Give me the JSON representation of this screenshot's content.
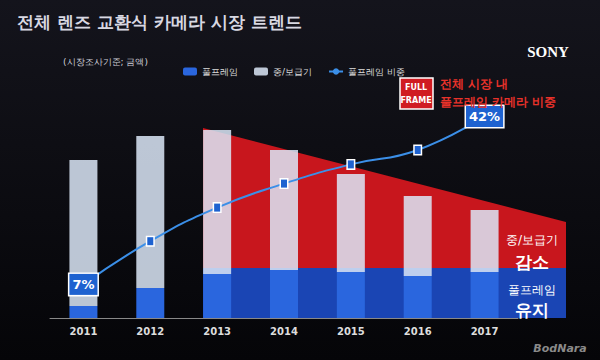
{
  "chart_data": {
    "type": "bar",
    "title": "전체 렌즈 교환식 카메라 시장 트렌드",
    "subtitle": "(시장조사기준; 금액)",
    "categories": [
      "2011",
      "2012",
      "2013",
      "2014",
      "2015",
      "2016",
      "2017"
    ],
    "series": [
      {
        "name": "풀프레임",
        "type": "bar",
        "color": "#2a66de",
        "values": [
          6,
          15,
          22,
          24,
          23,
          21,
          23
        ]
      },
      {
        "name": "중/보급기",
        "type": "bar",
        "color": "#dce8f8",
        "values": [
          73,
          76,
          72,
          60,
          49,
          40,
          31
        ]
      },
      {
        "name": "풀프레임 비중",
        "type": "line",
        "color": "#3b8fe8",
        "axis": "y2",
        "line_style": "solid",
        "data_labels": true,
        "values": [
          7,
          16,
          23,
          28,
          32,
          35,
          42
        ],
        "value_labels": [
          "7%",
          null,
          null,
          null,
          null,
          null,
          "42%"
        ]
      }
    ],
    "ylim": [
      0,
      120
    ],
    "y2lim": [
      0,
      50
    ],
    "stacked": true,
    "grid": false,
    "legend": "top",
    "tick_labels": "x",
    "annotations": [
      "SONY",
      "FULL",
      "FRAME",
      "전체 시장 내",
      "풀프레임 카메라 비중",
      "중/보급기",
      "감소",
      "풀프레임",
      "유지",
      "BodNara"
    ]
  }
}
